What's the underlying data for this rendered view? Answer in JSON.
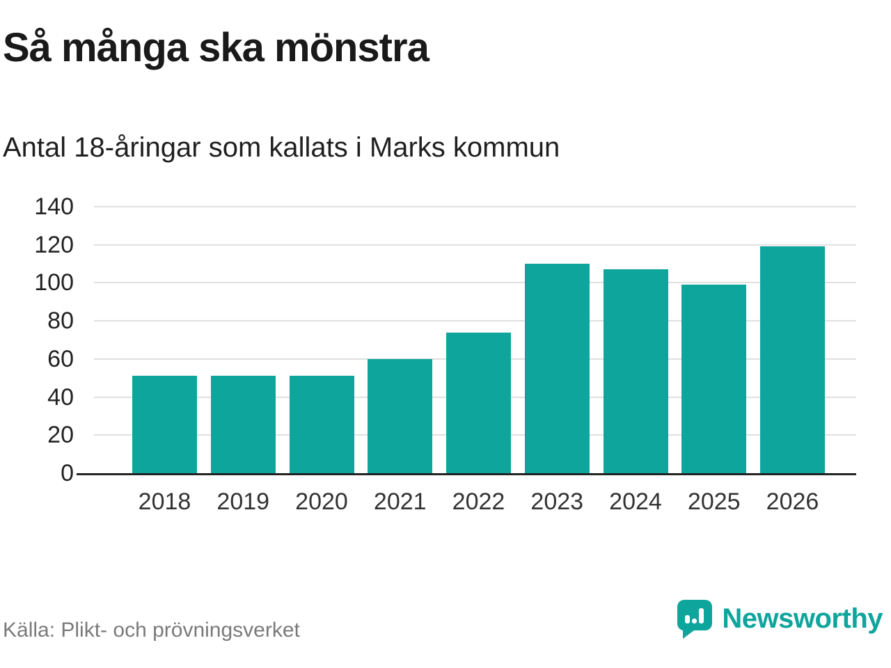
{
  "title": "Så många ska mönstra",
  "subtitle": "Antal 18-åringar som kallats i Marks kommun",
  "source": "Källa: Plikt- och prövningsverket",
  "logo": {
    "text": "Newsworthy",
    "icon": "bar-chart-pin-icon"
  },
  "colors": {
    "bar": "#0ea59d",
    "brand": "#0ea59d",
    "grid": "#e0e0e0",
    "axis": "#222222",
    "text": "#1a1a1a",
    "muted": "#7a7a7a"
  },
  "chart_data": {
    "type": "bar",
    "categories": [
      "2018",
      "2019",
      "2020",
      "2021",
      "2022",
      "2023",
      "2024",
      "2025",
      "2026"
    ],
    "values": [
      51,
      51,
      51,
      60,
      74,
      110,
      107,
      99,
      119
    ],
    "title": "Så många ska mönstra",
    "subtitle": "Antal 18-åringar som kallats i Marks kommun",
    "xlabel": "",
    "ylabel": "",
    "ylim": [
      0,
      140
    ],
    "yticks": [
      0,
      20,
      40,
      60,
      80,
      100,
      120,
      140
    ],
    "grid": true,
    "legend_position": "none",
    "bar_color": "#0ea59d",
    "source": "Källa: Plikt- och prövningsverket"
  }
}
